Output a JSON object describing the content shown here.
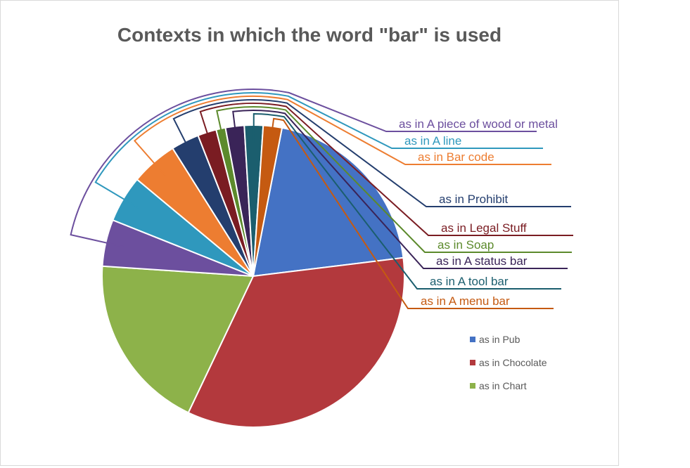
{
  "chart_data": {
    "type": "pie",
    "title": "Contexts in which the word \"bar\" is used",
    "legend_position": "right",
    "slices": [
      {
        "label": "as in Pub",
        "value": 20,
        "color": "#4472C4",
        "callout": false
      },
      {
        "label": "as in Chocolate",
        "value": 34,
        "color": "#B3393D",
        "callout": false
      },
      {
        "label": "as in Chart",
        "value": 19,
        "color": "#8DB24A",
        "callout": false
      },
      {
        "label": "as in A piece of wood or metal",
        "value": 5,
        "color": "#6C4F9E",
        "callout": true
      },
      {
        "label": "as in A line",
        "value": 5,
        "color": "#2F98BD",
        "callout": true
      },
      {
        "label": "as in Bar code",
        "value": 5,
        "color": "#ED7D31",
        "callout": true
      },
      {
        "label": "as in Prohibit",
        "value": 3,
        "color": "#243E6E",
        "callout": true
      },
      {
        "label": "as in Legal Stuff",
        "value": 2,
        "color": "#7A1C22",
        "callout": true
      },
      {
        "label": "as in Soap",
        "value": 1,
        "color": "#5C8A2C",
        "callout": true
      },
      {
        "label": "as in A status bar",
        "value": 2,
        "color": "#3A2458",
        "callout": true
      },
      {
        "label": "as in A tool bar",
        "value": 2,
        "color": "#1B5E6E",
        "callout": true
      },
      {
        "label": "as in A menu bar",
        "value": 2,
        "color": "#C55A11",
        "callout": true
      }
    ],
    "legend": [
      "as in Pub",
      "as in Chocolate",
      "as in Chart"
    ]
  }
}
